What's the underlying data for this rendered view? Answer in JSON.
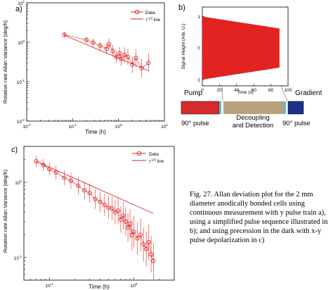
{
  "panel_a": {
    "label": "a)",
    "ylabel": "Rotation rate Allan Variance (deg/h)",
    "xlabel": "Time (h)",
    "xticks": [
      "10-2",
      "10-1",
      "100",
      "101"
    ],
    "yticks": [
      "10-2",
      "10-1",
      "100",
      "101"
    ],
    "legend_data": "Data",
    "legend_line": "τ-1/2 line"
  },
  "panel_b": {
    "label": "b)",
    "ylabel": "Signal Height (Arb. U.)",
    "xlabel": "Time (s)",
    "xticks": [
      "0",
      "20",
      "40",
      "60",
      "80",
      "100"
    ],
    "yticks": [
      "1",
      "0",
      "-1"
    ],
    "segments": {
      "pump": "Pump",
      "gradient": "Gradient",
      "decoupling": "Decoupling\nand Detection",
      "pulse1": "90° pulse",
      "pulse2": "90° pulse"
    }
  },
  "panel_c": {
    "label": "c)",
    "ylabel": "Rotation rate Allan Variance (deg/h)",
    "xlabel": "Time (h)",
    "xticks": [
      "10-1",
      "100",
      "101"
    ],
    "yticks": [
      "10-1",
      "100"
    ],
    "legend_data": "Data",
    "legend_line": "τ-1/2 line"
  },
  "caption": "Fig. 27. Allan deviation plot for the 2 mm diameter anodically bonded cells using continuous measurement with y pulse train a), using a simplified pulse sequence illustrated in b); and using precession in the dark with x-y pulse depolarization in c)",
  "colors": {
    "data": "#e32222",
    "pump": "#d62a2f",
    "decoupling": "#b8a27c",
    "gradient": "#1e2f8a",
    "pulse": "#59b8e0"
  },
  "chart_data": [
    {
      "type": "scatter",
      "panel": "a",
      "xscale": "log",
      "yscale": "log",
      "xlim": [
        0.01,
        10
      ],
      "ylim": [
        0.01,
        10
      ],
      "series": [
        {
          "name": "Data",
          "x": [
            0.066,
            0.2,
            0.28,
            0.4,
            0.55,
            0.62,
            0.75,
            0.9,
            1.05,
            1.15,
            1.35,
            1.6,
            2.0,
            2.4,
            3.2,
            4.5
          ],
          "y": [
            1.55,
            1.15,
            0.98,
            0.82,
            0.68,
            0.9,
            0.6,
            0.42,
            0.52,
            0.38,
            0.48,
            0.42,
            0.27,
            0.4,
            0.22,
            0.3
          ]
        },
        {
          "name": "τ-1/2 line",
          "x": [
            0.066,
            4.5
          ],
          "y": [
            1.5,
            0.19
          ]
        }
      ]
    },
    {
      "type": "area",
      "panel": "b",
      "xlim": [
        0,
        100
      ],
      "ylim": [
        -1.2,
        1.3
      ],
      "x": [
        0,
        90
      ],
      "upper": [
        1,
        0.62
      ],
      "lower": [
        -1,
        -0.62
      ]
    },
    {
      "type": "scatter",
      "panel": "c",
      "xscale": "log",
      "yscale": "log",
      "xlim": [
        0.05,
        3
      ],
      "ylim": [
        0.05,
        3
      ],
      "series": [
        {
          "name": "Data",
          "x": [
            0.07,
            0.085,
            0.1,
            0.12,
            0.15,
            0.18,
            0.22,
            0.26,
            0.3,
            0.35,
            0.4,
            0.45,
            0.5,
            0.55,
            0.6,
            0.65,
            0.7,
            0.75,
            0.8,
            0.85,
            0.9,
            0.95,
            1.0,
            1.1,
            1.2,
            1.3,
            1.4,
            1.5,
            1.6,
            1.7
          ],
          "y": [
            1.9,
            1.7,
            1.5,
            1.35,
            1.15,
            1.05,
            0.9,
            0.78,
            0.72,
            0.6,
            0.55,
            0.5,
            0.46,
            0.45,
            0.4,
            0.42,
            0.32,
            0.36,
            0.3,
            0.25,
            0.28,
            0.2,
            0.22,
            0.18,
            0.2,
            0.15,
            0.13,
            0.16,
            0.11,
            0.09
          ]
        },
        {
          "name": "τ-1/2 line",
          "x": [
            0.07,
            1.7
          ],
          "y": [
            1.9,
            0.385
          ]
        }
      ]
    }
  ]
}
